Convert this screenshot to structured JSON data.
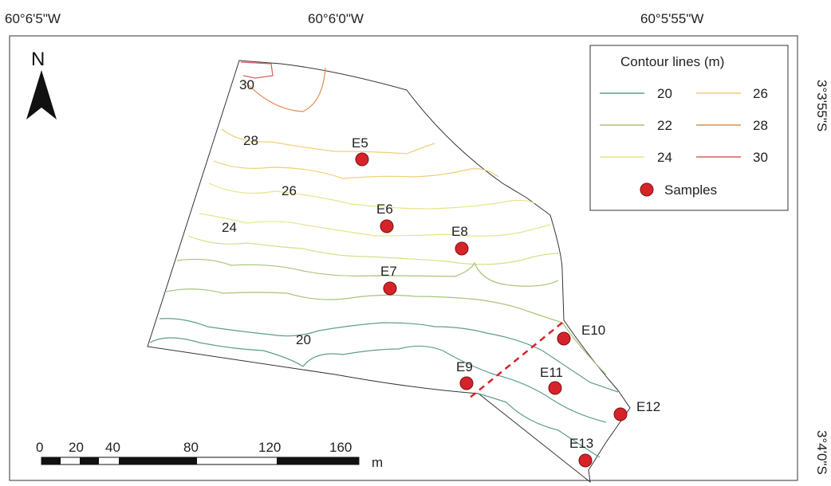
{
  "coordinates": {
    "longitudes": [
      "60°6'5\"W",
      "60°6'0\"W",
      "60°5'55\"W"
    ],
    "latitudes": [
      "3°3'55\"S",
      "3°4'0\"S"
    ]
  },
  "north_arrow": {
    "label": "N"
  },
  "legend": {
    "title": "Contour lines (m)",
    "items": [
      {
        "label": "20",
        "color": "#5f9e8a"
      },
      {
        "label": "22",
        "color": "#a8c47a"
      },
      {
        "label": "24",
        "color": "#e4e58c"
      },
      {
        "label": "26",
        "color": "#ecd078"
      },
      {
        "label": "28",
        "color": "#e38a52"
      },
      {
        "label": "30",
        "color": "#d8605a"
      }
    ],
    "samples_label": "Samples",
    "sample_color": "#d6232a"
  },
  "contour_labels": [
    "30",
    "28",
    "26",
    "24",
    "20"
  ],
  "samples": [
    "E5",
    "E6",
    "E7",
    "E8",
    "E9",
    "E10",
    "E11",
    "E12",
    "E13"
  ],
  "scale_bar": {
    "ticks": [
      "0",
      "20",
      "40",
      "80",
      "120",
      "160"
    ],
    "unit": "m"
  }
}
